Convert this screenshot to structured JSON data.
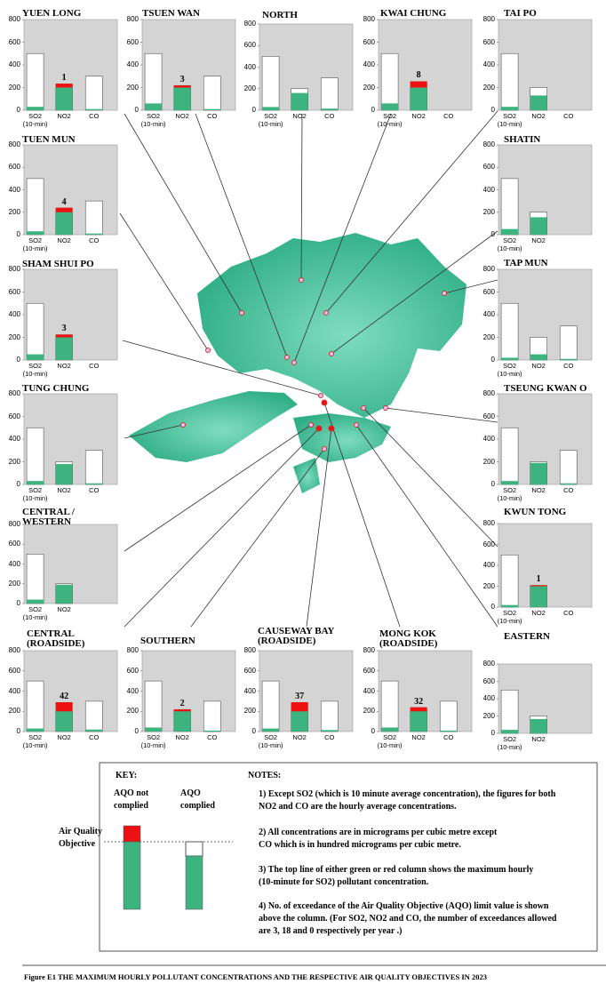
{
  "chart_data": [
    {
      "type": "bar",
      "title": "YUEN LONG",
      "categories": [
        "SO2\n(10-min)",
        "NO2",
        "CO"
      ],
      "values": [
        30,
        235,
        10
      ],
      "limits": [
        500,
        200,
        300
      ],
      "exceedances": [
        null,
        1,
        null
      ],
      "ylim": [
        0,
        800
      ],
      "yticks": [
        0,
        200,
        400,
        600,
        800
      ],
      "color": "#3db37f",
      "exceed_color": "#ee1111"
    },
    {
      "type": "bar",
      "title": "TSUEN WAN",
      "categories": [
        "SO2\n(10-min)",
        "NO2",
        "CO"
      ],
      "values": [
        60,
        220,
        10
      ],
      "limits": [
        500,
        200,
        300
      ],
      "exceedances": [
        null,
        3,
        null
      ],
      "ylim": [
        0,
        800
      ],
      "yticks": [
        0,
        200,
        400,
        600,
        800
      ],
      "color": "#3db37f",
      "exceed_color": "#ee1111"
    },
    {
      "type": "bar",
      "title": "NORTH",
      "categories": [
        "SO2\n(10-min)",
        "NO2",
        "CO"
      ],
      "values": [
        30,
        160,
        15
      ],
      "limits": [
        500,
        200,
        300
      ],
      "exceedances": [
        null,
        null,
        null
      ],
      "ylim": [
        0,
        800
      ],
      "yticks": [
        0,
        200,
        400,
        600,
        800
      ],
      "color": "#3db37f",
      "exceed_color": "#ee1111"
    },
    {
      "type": "bar",
      "title": "KWAI CHUNG",
      "categories": [
        "SO2\n(10-min)",
        "NO2",
        "CO"
      ],
      "values": [
        60,
        255,
        null
      ],
      "limits": [
        500,
        200,
        null
      ],
      "exceedances": [
        null,
        8,
        null
      ],
      "ylim": [
        0,
        800
      ],
      "yticks": [
        0,
        200,
        400,
        600,
        800
      ],
      "color": "#3db37f",
      "exceed_color": "#ee1111"
    },
    {
      "type": "bar",
      "title": "TAI PO",
      "categories": [
        "SO2\n(10-min)",
        "NO2",
        "CO"
      ],
      "values": [
        30,
        130,
        null
      ],
      "limits": [
        500,
        200,
        null
      ],
      "exceedances": [
        null,
        null,
        null
      ],
      "ylim": [
        0,
        800
      ],
      "yticks": [
        0,
        200,
        400,
        600,
        800
      ],
      "color": "#3db37f",
      "exceed_color": "#ee1111"
    },
    {
      "type": "bar",
      "title": "TUEN MUN",
      "categories": [
        "SO2\n(10-min)",
        "NO2",
        "CO"
      ],
      "values": [
        30,
        240,
        10
      ],
      "limits": [
        500,
        200,
        300
      ],
      "exceedances": [
        null,
        4,
        null
      ],
      "ylim": [
        0,
        800
      ],
      "yticks": [
        0,
        200,
        400,
        600,
        800
      ],
      "color": "#3db37f",
      "exceed_color": "#ee1111"
    },
    {
      "type": "bar",
      "title": "SHATIN",
      "categories": [
        "SO2\n(10-min)",
        "NO2",
        null
      ],
      "values": [
        50,
        155,
        null
      ],
      "limits": [
        500,
        200,
        null
      ],
      "exceedances": [
        null,
        null,
        null
      ],
      "ylim": [
        0,
        800
      ],
      "yticks": [
        0,
        200,
        400,
        600,
        800
      ],
      "color": "#3db37f",
      "exceed_color": "#ee1111"
    },
    {
      "type": "bar",
      "title": "SHAM SHUI PO",
      "categories": [
        "SO2\n(10-min)",
        "NO2",
        "CO"
      ],
      "values": [
        50,
        225,
        null
      ],
      "limits": [
        500,
        200,
        null
      ],
      "exceedances": [
        null,
        3,
        null
      ],
      "ylim": [
        0,
        800
      ],
      "yticks": [
        0,
        200,
        400,
        600,
        800
      ],
      "color": "#3db37f",
      "exceed_color": "#ee1111"
    },
    {
      "type": "bar",
      "title": "TAP MUN",
      "categories": [
        "SO2\n(10-min)",
        "NO2",
        "CO"
      ],
      "values": [
        20,
        50,
        10
      ],
      "limits": [
        500,
        200,
        300
      ],
      "exceedances": [
        null,
        null,
        null
      ],
      "ylim": [
        0,
        800
      ],
      "yticks": [
        0,
        200,
        400,
        600,
        800
      ],
      "color": "#3db37f",
      "exceed_color": "#ee1111"
    },
    {
      "type": "bar",
      "title": "TUNG CHUNG",
      "categories": [
        "SO2\n(10-min)",
        "NO2",
        "CO"
      ],
      "values": [
        30,
        180,
        10
      ],
      "limits": [
        500,
        200,
        300
      ],
      "exceedances": [
        null,
        null,
        null
      ],
      "ylim": [
        0,
        800
      ],
      "yticks": [
        0,
        200,
        400,
        600,
        800
      ],
      "color": "#3db37f",
      "exceed_color": "#ee1111"
    },
    {
      "type": "bar",
      "title": "TSEUNG KWAN O",
      "categories": [
        "SO2\n(10-min)",
        "NO2",
        "CO"
      ],
      "values": [
        30,
        190,
        10
      ],
      "limits": [
        500,
        200,
        300
      ],
      "exceedances": [
        null,
        null,
        null
      ],
      "ylim": [
        0,
        800
      ],
      "yticks": [
        0,
        200,
        400,
        600,
        800
      ],
      "color": "#3db37f",
      "exceed_color": "#ee1111"
    },
    {
      "type": "bar",
      "title": "CENTRAL /\nWESTERN",
      "categories": [
        "SO2\n(10-min)",
        "NO2",
        null
      ],
      "values": [
        40,
        190,
        null
      ],
      "limits": [
        500,
        200,
        null
      ],
      "exceedances": [
        null,
        null,
        null
      ],
      "ylim": [
        0,
        800
      ],
      "yticks": [
        0,
        200,
        400,
        600,
        800
      ],
      "color": "#3db37f",
      "exceed_color": "#ee1111"
    },
    {
      "type": "bar",
      "title": "KWUN TONG",
      "categories": [
        "SO2\n(10-min)",
        "NO2",
        "CO"
      ],
      "values": [
        20,
        210,
        null
      ],
      "limits": [
        500,
        200,
        null
      ],
      "exceedances": [
        null,
        1,
        null
      ],
      "ylim": [
        0,
        800
      ],
      "yticks": [
        0,
        200,
        400,
        600,
        800
      ],
      "color": "#3db37f",
      "exceed_color": "#ee1111"
    },
    {
      "type": "bar",
      "title": "CENTRAL\n(ROADSIDE)",
      "categories": [
        "SO2\n(10-min)",
        "NO2",
        "CO"
      ],
      "values": [
        30,
        290,
        20
      ],
      "limits": [
        500,
        200,
        300
      ],
      "exceedances": [
        null,
        42,
        null
      ],
      "ylim": [
        0,
        800
      ],
      "yticks": [
        0,
        200,
        400,
        600,
        800
      ],
      "color": "#3db37f",
      "exceed_color": "#ee1111"
    },
    {
      "type": "bar",
      "title": "SOUTHERN",
      "categories": [
        "SO2\n(10-min)",
        "NO2",
        "CO"
      ],
      "values": [
        40,
        220,
        10
      ],
      "limits": [
        500,
        200,
        300
      ],
      "exceedances": [
        null,
        2,
        null
      ],
      "ylim": [
        0,
        800
      ],
      "yticks": [
        0,
        200,
        400,
        600,
        800
      ],
      "color": "#3db37f",
      "exceed_color": "#ee1111"
    },
    {
      "type": "bar",
      "title": "CAUSEWAY BAY\n(ROADSIDE)",
      "categories": [
        "SO2\n(10-min)",
        "NO2",
        "CO"
      ],
      "values": [
        30,
        290,
        15
      ],
      "limits": [
        500,
        200,
        300
      ],
      "exceedances": [
        null,
        37,
        null
      ],
      "ylim": [
        0,
        800
      ],
      "yticks": [
        0,
        200,
        400,
        600,
        800
      ],
      "color": "#3db37f",
      "exceed_color": "#ee1111"
    },
    {
      "type": "bar",
      "title": "MONG KOK\n(ROADSIDE)",
      "categories": [
        "SO2\n(10-min)",
        "NO2",
        "CO"
      ],
      "values": [
        40,
        240,
        10
      ],
      "limits": [
        500,
        200,
        300
      ],
      "exceedances": [
        null,
        32,
        null
      ],
      "ylim": [
        0,
        800
      ],
      "yticks": [
        0,
        200,
        400,
        600,
        800
      ],
      "color": "#3db37f",
      "exceed_color": "#ee1111"
    },
    {
      "type": "bar",
      "title": "EASTERN",
      "categories": [
        "SO2\n(10-min)",
        "NO2",
        null
      ],
      "values": [
        40,
        165,
        null
      ],
      "limits": [
        500,
        200,
        null
      ],
      "exceedances": [
        null,
        null,
        null
      ],
      "ylim": [
        0,
        800
      ],
      "yticks": [
        0,
        200,
        400,
        600,
        800
      ],
      "color": "#3db37f",
      "exceed_color": "#ee1111"
    }
  ],
  "key": {
    "title": "KEY:",
    "not_complied": "AQO not\ncomplied",
    "complied": "AQO\ncomplied",
    "objective": "Air Quality\nObjective"
  },
  "notes": {
    "title": "NOTES:",
    "items": [
      "1) Except SO2 (which is 10 minute average concentration), the figures for both\n    NO2 and CO are the hourly average concentrations.",
      "2) All concentrations are in micrograms per cubic metre except\n    CO which is in hundred micrograms per cubic metre.",
      "3) The top line of either green or red column shows the maximum hourly\n    (10-minute for SO2) pollutant concentration.",
      "4) No. of exceedance of the Air Quality Objective (AQO) limit value is shown\n    above the column. (For SO2, NO2 and CO, the number of exceedances allowed\n    are 3, 18 and 0 respectively per year .)"
    ]
  },
  "caption": "Figure E1  THE MAXIMUM HOURLY POLLUTANT CONCENTRATIONS AND THE RESPECTIVE AIR QUALITY OBJECTIVES IN 2023"
}
